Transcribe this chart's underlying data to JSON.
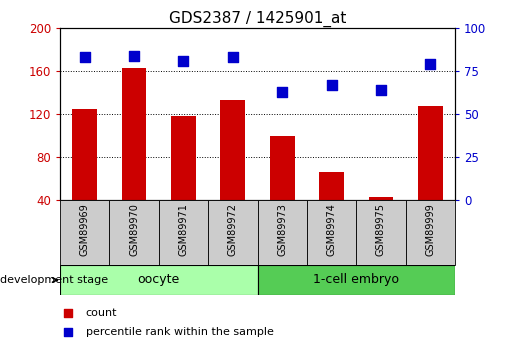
{
  "title": "GDS2387 / 1425901_at",
  "samples": [
    "GSM89969",
    "GSM89970",
    "GSM89971",
    "GSM89972",
    "GSM89973",
    "GSM89974",
    "GSM89975",
    "GSM89999"
  ],
  "counts": [
    125,
    163,
    118,
    133,
    100,
    66,
    43,
    127
  ],
  "percentiles": [
    83,
    84,
    81,
    83,
    63,
    67,
    64,
    79
  ],
  "ylim_left": [
    40,
    200
  ],
  "ylim_right": [
    0,
    100
  ],
  "yticks_left": [
    40,
    80,
    120,
    160,
    200
  ],
  "yticks_right": [
    0,
    25,
    50,
    75,
    100
  ],
  "bar_color": "#cc0000",
  "dot_color": "#0000cc",
  "groups": [
    {
      "label": "oocyte",
      "n": 4,
      "color": "#aaffaa"
    },
    {
      "label": "1-cell embryo",
      "n": 4,
      "color": "#55cc55"
    }
  ],
  "group_label": "development stage",
  "legend_items": [
    {
      "label": "count",
      "color": "#cc0000"
    },
    {
      "label": "percentile rank within the sample",
      "color": "#0000cc"
    }
  ],
  "grid_linestyle": ":",
  "tick_label_color_left": "#cc0000",
  "tick_label_color_right": "#0000cc",
  "bar_bottom": 40,
  "dot_size": 45,
  "xtick_box_color": "#cccccc",
  "bar_width": 0.5
}
